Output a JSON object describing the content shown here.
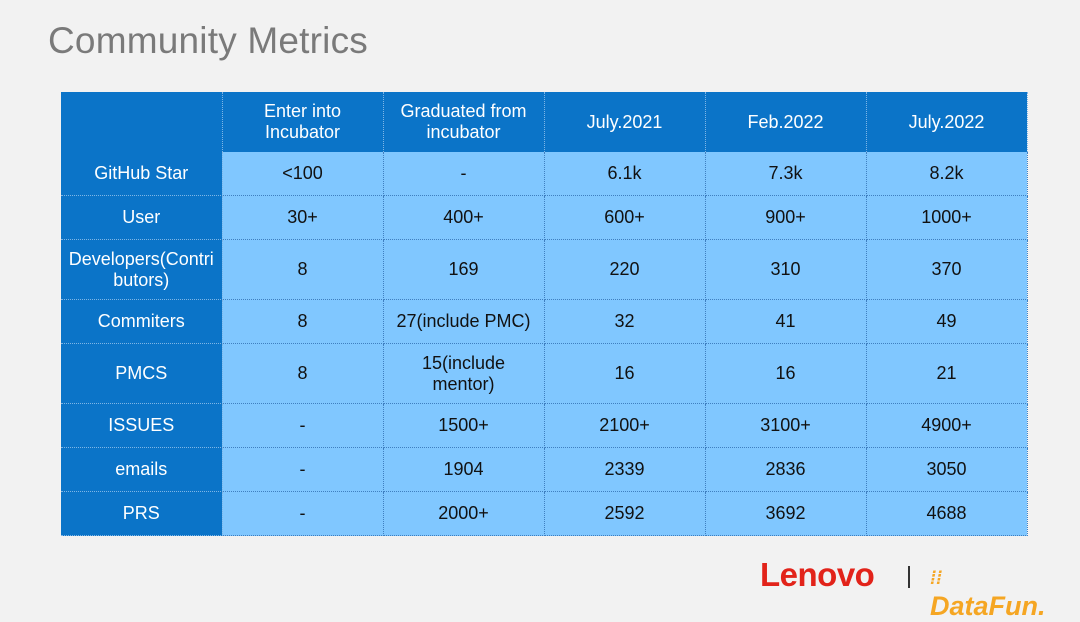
{
  "title": "Community Metrics",
  "columns": [
    "",
    "Enter into Incubator",
    "Graduated from incubator",
    "July.2021",
    "Feb.2022",
    "July.2022"
  ],
  "rows": [
    {
      "label": "GitHub Star",
      "values": [
        "<100",
        "-",
        "6.1k",
        "7.3k",
        "8.2k"
      ]
    },
    {
      "label": "User",
      "values": [
        "30+",
        "400+",
        "600+",
        "900+",
        "1000+"
      ]
    },
    {
      "label": "Developers(Contributors)",
      "values": [
        "8",
        "169",
        "220",
        "310",
        "370"
      ]
    },
    {
      "label": "Commiters",
      "values": [
        "8",
        "27(include PMC)",
        "32",
        "41",
        "49"
      ]
    },
    {
      "label": "PMCS",
      "values": [
        "8",
        "15(include mentor)",
        "16",
        "16",
        "21"
      ]
    },
    {
      "label": "ISSUES",
      "values": [
        "-",
        "1500+",
        "2100+",
        "3100+",
        "4900+"
      ]
    },
    {
      "label": "emails",
      "values": [
        "-",
        "1904",
        "2339",
        "2836",
        "3050"
      ]
    },
    {
      "label": "PRS",
      "values": [
        "-",
        "2000+",
        "2592",
        "3692",
        "4688"
      ]
    }
  ],
  "logos": {
    "lenovo": "Lenovo",
    "separator": "|",
    "datafun": "DataFun."
  },
  "colors": {
    "header_bg": "#0b74c8",
    "cell_bg": "#80c7ff",
    "lenovo_red": "#e2231a",
    "datafun_orange": "#f5a623"
  }
}
